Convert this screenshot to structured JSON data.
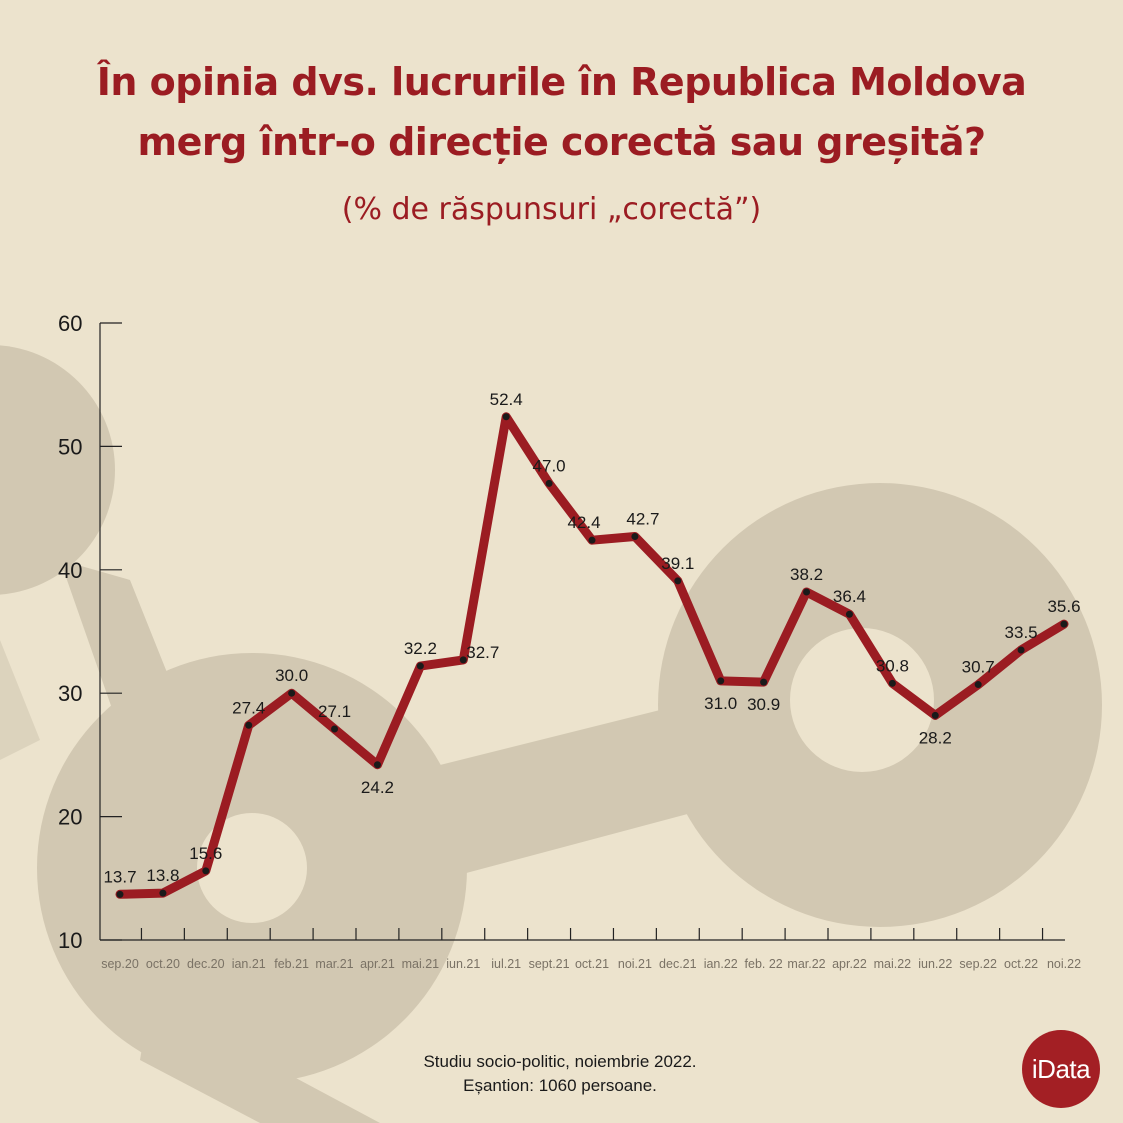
{
  "title_line1": "În opinia dvs. lucrurile în Republica Moldova",
  "title_line2": "merg într-o direcție corectă sau greșită?",
  "subtitle": "(% de răspunsuri „corectă”)",
  "footer_line1": "Studiu socio-politic, noiembrie 2022.",
  "footer_line2": "Eșantion: 1060 persoane.",
  "logo_text": "iData",
  "colors": {
    "background": "#ece3cd",
    "line": "#9b1c22",
    "shapes": "#d2c8b2",
    "title": "#9b1c22"
  },
  "chart_data": {
    "type": "line",
    "title": "În opinia dvs. lucrurile în Republica Moldova merg într-o direcție corectă sau greșită?",
    "subtitle": "(% de răspunsuri „corectă”)",
    "xlabel": "",
    "ylabel": "",
    "ylim": [
      10,
      60
    ],
    "yticks": [
      10,
      20,
      30,
      40,
      50,
      60
    ],
    "grid": false,
    "categories": [
      "sep.20",
      "oct.20",
      "dec.20",
      "ian.21",
      "feb.21",
      "mar.21",
      "apr.21",
      "mai.21",
      "iun.21",
      "iul.21",
      "sept.21",
      "oct.21",
      "noi.21",
      "dec.21",
      "ian.22",
      "feb. 22",
      "mar.22",
      "apr.22",
      "mai.22",
      "iun.22",
      "sep.22",
      "oct.22",
      "noi.22"
    ],
    "values": [
      13.7,
      13.8,
      15.6,
      27.4,
      30.0,
      27.1,
      24.2,
      32.2,
      32.7,
      52.4,
      47.0,
      42.4,
      42.7,
      39.1,
      31.0,
      30.9,
      38.2,
      36.4,
      30.8,
      28.2,
      30.7,
      33.5,
      35.6
    ],
    "labels": [
      "13.7",
      "13.8",
      "15.6",
      "27.4",
      "30.0",
      "27.1",
      "24.2",
      "32.2",
      "32.7",
      "52.4",
      "47.0",
      "42.4",
      "42.7",
      "39.1",
      "31.0",
      "30.9",
      "38.2",
      "36.4",
      "30.8",
      "28.2",
      "30.7",
      "33.5",
      "35.6"
    ]
  }
}
